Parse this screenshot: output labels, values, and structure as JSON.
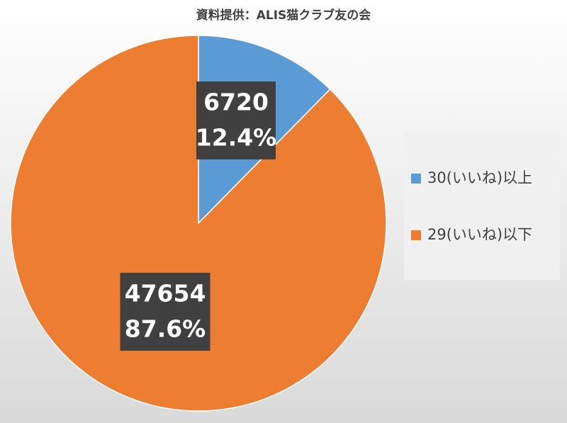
{
  "chart_data": {
    "type": "pie",
    "title": "資料提供：ALIS猫クラブ友の会",
    "categories": [
      "30(いいね)以上",
      "29(いいね)以下"
    ],
    "values": [
      6720,
      47654
    ],
    "percent_labels": [
      "12.4%",
      "87.6%"
    ],
    "colors": [
      "#5b9bd5",
      "#ed7d31"
    ],
    "legend": "right"
  }
}
